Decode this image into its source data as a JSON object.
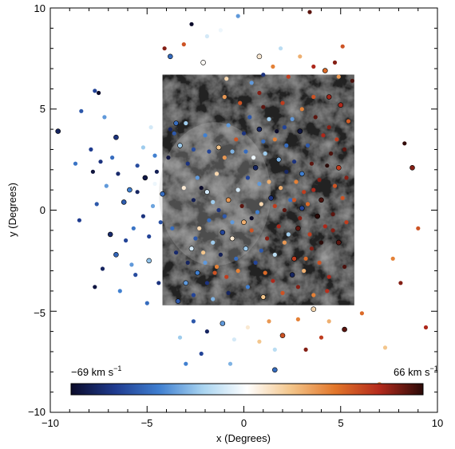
{
  "chart_data": {
    "type": "scatter",
    "title": "",
    "xlabel": "x (Degrees)",
    "ylabel": "y (Degrees)",
    "xlim": [
      -10,
      10
    ],
    "ylim": [
      -10,
      10
    ],
    "xticks": [
      -10,
      -5,
      0,
      5,
      10
    ],
    "yticks": [
      -10,
      -5,
      0,
      5,
      10
    ],
    "tick_labels_x": [
      "−10",
      "−5",
      "0",
      "5",
      "10"
    ],
    "tick_labels_y": [
      "−10",
      "−5",
      "0",
      "5",
      "10"
    ],
    "grid": false,
    "background_image": {
      "description": "grayscale nebular emission map",
      "x_range": [
        -4.2,
        5.7
      ],
      "y_range": [
        -4.7,
        6.7
      ]
    },
    "colorbar": {
      "min_label": "−69 km s",
      "max_label": "66 km s",
      "unit_superscript": "−1",
      "vmin": -69,
      "vmax": 66,
      "stops": [
        "#0b0b2a",
        "#1f3b8f",
        "#3f7fd0",
        "#a9d4f0",
        "#ffffff",
        "#f3c58a",
        "#e2762a",
        "#b42a1c",
        "#2a0a08"
      ]
    },
    "points": [
      [
        -9.6,
        3.9,
        -60
      ],
      [
        -8.4,
        4.9,
        -45
      ],
      [
        -7.7,
        5.9,
        -50
      ],
      [
        -7.5,
        5.8,
        -69
      ],
      [
        -7.2,
        4.6,
        -30
      ],
      [
        -6.6,
        3.6,
        -55
      ],
      [
        -6.8,
        2.6,
        -40
      ],
      [
        -7.9,
        3.0,
        -52
      ],
      [
        -7.1,
        1.2,
        -30
      ],
      [
        -6.5,
        1.8,
        -58
      ],
      [
        -5.9,
        1.0,
        -35
      ],
      [
        -5.5,
        2.2,
        -48
      ],
      [
        -5.2,
        3.1,
        -20
      ],
      [
        -4.8,
        4.1,
        -10
      ],
      [
        -4.5,
        1.9,
        -62
      ],
      [
        -4.2,
        0.8,
        -40
      ],
      [
        -4.7,
        0.2,
        -28
      ],
      [
        -5.2,
        -0.3,
        -55
      ],
      [
        -5.7,
        -0.9,
        -38
      ],
      [
        -6.1,
        -1.5,
        -50
      ],
      [
        -6.6,
        -2.2,
        -42
      ],
      [
        -7.3,
        -2.9,
        -60
      ],
      [
        -7.7,
        -3.8,
        -65
      ],
      [
        -6.4,
        -4.0,
        -35
      ],
      [
        -5.6,
        -3.2,
        -48
      ],
      [
        -4.9,
        -2.5,
        -22
      ],
      [
        -4.4,
        -3.6,
        -55
      ],
      [
        -5.0,
        -4.6,
        -40
      ],
      [
        -7.8,
        1.9,
        -66
      ],
      [
        -7.4,
        2.4,
        -55
      ],
      [
        -6.2,
        0.4,
        -44
      ],
      [
        -5.5,
        0.9,
        -60
      ],
      [
        -4.6,
        2.7,
        -35
      ],
      [
        -4.9,
        -1.3,
        -50
      ],
      [
        -5.8,
        -2.7,
        -30
      ],
      [
        -6.9,
        -1.2,
        -58
      ],
      [
        -7.6,
        0.3,
        -45
      ],
      [
        -8.7,
        2.3,
        -38
      ],
      [
        -8.5,
        -0.5,
        -52
      ],
      [
        -4.6,
        1.3,
        -5
      ],
      [
        -5.1,
        1.6,
        -64
      ],
      [
        -4.3,
        -0.6,
        -47
      ],
      [
        -3.3,
        -6.3,
        -20
      ],
      [
        -2.6,
        -5.5,
        -45
      ],
      [
        -1.9,
        -6.0,
        -60
      ],
      [
        -1.1,
        -5.6,
        -30
      ],
      [
        -0.5,
        -6.4,
        -10
      ],
      [
        0.2,
        -5.8,
        5
      ],
      [
        0.8,
        -6.5,
        15
      ],
      [
        1.3,
        -5.5,
        25
      ],
      [
        2.0,
        -6.2,
        40
      ],
      [
        2.8,
        -5.4,
        30
      ],
      [
        3.2,
        -6.9,
        55
      ],
      [
        4.0,
        -6.3,
        45
      ],
      [
        4.4,
        -5.5,
        20
      ],
      [
        3.6,
        -4.9,
        10
      ],
      [
        1.6,
        -6.9,
        -15
      ],
      [
        -0.7,
        -7.6,
        -25
      ],
      [
        -2.2,
        -7.1,
        -50
      ],
      [
        -3.0,
        -7.6,
        -35
      ],
      [
        5.2,
        -5.9,
        60
      ],
      [
        6.1,
        -5.1,
        35
      ],
      [
        7.3,
        -6.8,
        15
      ],
      [
        9.4,
        -5.8,
        50
      ],
      [
        9.0,
        -0.9,
        40
      ],
      [
        8.7,
        2.1,
        55
      ],
      [
        8.3,
        3.3,
        65
      ],
      [
        7.7,
        -2.4,
        30
      ],
      [
        8.1,
        -3.6,
        55
      ],
      [
        7.0,
        -8.6,
        20
      ],
      [
        1.6,
        -7.9,
        -40
      ],
      [
        -3.1,
        8.2,
        40
      ],
      [
        -2.7,
        9.2,
        -69
      ],
      [
        -1.9,
        8.6,
        -10
      ],
      [
        -0.3,
        9.6,
        -30
      ],
      [
        0.8,
        7.6,
        5
      ],
      [
        1.5,
        7.1,
        30
      ],
      [
        2.3,
        6.6,
        45
      ],
      [
        2.9,
        7.6,
        20
      ],
      [
        3.6,
        7.1,
        50
      ],
      [
        4.2,
        6.9,
        35
      ],
      [
        4.7,
        7.3,
        55
      ],
      [
        5.1,
        8.1,
        40
      ],
      [
        4.9,
        6.6,
        25
      ],
      [
        3.4,
        9.8,
        60
      ],
      [
        -3.8,
        7.6,
        -40
      ],
      [
        -4.1,
        8.0,
        55
      ],
      [
        1.0,
        6.7,
        -55
      ],
      [
        0.4,
        6.3,
        -30
      ],
      [
        -0.9,
        6.5,
        10
      ],
      [
        -2.1,
        7.3,
        0
      ],
      [
        1.9,
        8.0,
        -15
      ],
      [
        5.6,
        6.4,
        62
      ],
      [
        -1.2,
        8.9,
        -5
      ],
      [
        -3.6,
        3.8,
        -45
      ],
      [
        -3.3,
        3.2,
        -20
      ],
      [
        -2.9,
        2.3,
        -55
      ],
      [
        -2.4,
        1.6,
        -30
      ],
      [
        -3.1,
        1.1,
        5
      ],
      [
        -2.6,
        0.5,
        -62
      ],
      [
        -1.9,
        0.9,
        -10
      ],
      [
        -1.4,
        1.8,
        10
      ],
      [
        -1.0,
        2.6,
        25
      ],
      [
        -0.4,
        3.5,
        40
      ],
      [
        0.1,
        2.9,
        -40
      ],
      [
        0.6,
        2.1,
        -60
      ],
      [
        1.1,
        2.8,
        -20
      ],
      [
        1.6,
        3.5,
        30
      ],
      [
        2.1,
        4.1,
        -50
      ],
      [
        2.5,
        4.5,
        -30
      ],
      [
        2.9,
        3.9,
        -65
      ],
      [
        3.3,
        3.2,
        -45
      ],
      [
        3.7,
        4.6,
        60
      ],
      [
        4.1,
        3.7,
        50
      ],
      [
        4.5,
        2.8,
        62
      ],
      [
        4.9,
        2.1,
        45
      ],
      [
        5.3,
        1.6,
        55
      ],
      [
        5.1,
        0.6,
        40
      ],
      [
        4.6,
        -0.2,
        60
      ],
      [
        4.2,
        -0.8,
        50
      ],
      [
        3.8,
        -0.3,
        66
      ],
      [
        3.3,
        0.3,
        35
      ],
      [
        2.9,
        -0.4,
        55
      ],
      [
        2.4,
        0.5,
        -40
      ],
      [
        1.9,
        1.1,
        20
      ],
      [
        1.4,
        0.6,
        -55
      ],
      [
        0.9,
        0.3,
        10
      ],
      [
        0.4,
        -0.4,
        -69
      ],
      [
        -0.1,
        0.2,
        60
      ],
      [
        -0.6,
        -0.6,
        -30
      ],
      [
        -1.1,
        -1.1,
        -50
      ],
      [
        -1.6,
        -1.6,
        -20
      ],
      [
        -2.1,
        -2.1,
        15
      ],
      [
        -2.5,
        -1.4,
        -45
      ],
      [
        -2.9,
        -2.6,
        -60
      ],
      [
        -2.4,
        -3.1,
        -35
      ],
      [
        -1.9,
        -3.6,
        -55
      ],
      [
        -1.4,
        -2.8,
        30
      ],
      [
        -0.9,
        -3.3,
        45
      ],
      [
        -0.4,
        -2.4,
        -40
      ],
      [
        0.1,
        -1.9,
        -20
      ],
      [
        0.6,
        -2.6,
        -50
      ],
      [
        1.1,
        -3.1,
        35
      ],
      [
        1.6,
        -2.2,
        -15
      ],
      [
        2.1,
        -1.6,
        25
      ],
      [
        2.6,
        -2.4,
        45
      ],
      [
        3.1,
        -3.0,
        20
      ],
      [
        3.5,
        -1.9,
        55
      ],
      [
        3.9,
        -2.6,
        40
      ],
      [
        4.4,
        -3.3,
        50
      ],
      [
        4.9,
        -1.6,
        60
      ],
      [
        5.3,
        -0.6,
        45
      ],
      [
        5.2,
        -2.8,
        62
      ],
      [
        -3.7,
        -0.9,
        -40
      ],
      [
        -3.5,
        -2.1,
        -58
      ],
      [
        -3.0,
        -3.6,
        -30
      ],
      [
        -2.6,
        -4.2,
        -50
      ],
      [
        -1.6,
        -4.4,
        -25
      ],
      [
        -0.8,
        -4.1,
        -60
      ],
      [
        0.2,
        -3.8,
        -35
      ],
      [
        1.0,
        -4.3,
        15
      ],
      [
        2.0,
        -4.1,
        40
      ],
      [
        2.8,
        -3.8,
        55
      ],
      [
        3.6,
        -4.2,
        30
      ],
      [
        4.3,
        -4.0,
        48
      ],
      [
        -3.4,
        -4.5,
        -45
      ],
      [
        -3.9,
        2.6,
        -65
      ],
      [
        -1.8,
        2.9,
        -50
      ],
      [
        -0.8,
        4.2,
        -30
      ],
      [
        0.3,
        4.6,
        -45
      ],
      [
        0.8,
        4.0,
        -60
      ],
      [
        1.3,
        4.5,
        -20
      ],
      [
        1.7,
        3.9,
        -69
      ],
      [
        2.2,
        3.2,
        -40
      ],
      [
        2.6,
        2.4,
        -55
      ],
      [
        3.0,
        1.8,
        -35
      ],
      [
        3.5,
        2.3,
        60
      ],
      [
        3.9,
        1.5,
        55
      ],
      [
        4.3,
        2.2,
        66
      ],
      [
        4.7,
        1.2,
        40
      ],
      [
        4.0,
        0.5,
        62
      ],
      [
        3.6,
        1.0,
        50
      ],
      [
        3.1,
        0.9,
        45
      ],
      [
        2.7,
        1.4,
        30
      ],
      [
        2.2,
        1.9,
        -60
      ],
      [
        1.8,
        2.5,
        -25
      ],
      [
        1.3,
        1.4,
        20
      ],
      [
        0.8,
        1.3,
        -30
      ],
      [
        0.2,
        1.6,
        -50
      ],
      [
        -0.3,
        1.0,
        -10
      ],
      [
        -0.8,
        0.5,
        25
      ],
      [
        -1.3,
        0.0,
        -55
      ],
      [
        -1.8,
        -0.5,
        -40
      ],
      [
        -2.3,
        -0.9,
        10
      ],
      [
        -1.2,
        -2.2,
        -62
      ],
      [
        -0.6,
        -1.4,
        5
      ],
      [
        0.4,
        -1.0,
        40
      ],
      [
        1.2,
        -1.4,
        55
      ],
      [
        1.8,
        -0.8,
        50
      ],
      [
        2.3,
        -1.2,
        -20
      ],
      [
        2.8,
        -0.9,
        60
      ],
      [
        3.4,
        -1.2,
        45
      ],
      [
        4.0,
        -1.6,
        66
      ],
      [
        4.6,
        -1.0,
        55
      ],
      [
        -2.0,
        -2.6,
        -30
      ],
      [
        -2.7,
        -1.9,
        -10
      ],
      [
        -1.5,
        -3.1,
        40
      ],
      [
        -0.3,
        -3.0,
        30
      ],
      [
        0.9,
        -2.0,
        -45
      ],
      [
        1.5,
        -3.5,
        50
      ],
      [
        2.5,
        -3.2,
        -60
      ],
      [
        3.2,
        -2.4,
        35
      ],
      [
        -2.2,
        1.1,
        -69
      ],
      [
        -1.6,
        0.4,
        -20
      ],
      [
        -1.0,
        -0.3,
        -45
      ],
      [
        0.0,
        -0.6,
        20
      ],
      [
        0.7,
        -0.1,
        -35
      ],
      [
        1.6,
        0.2,
        45
      ],
      [
        2.1,
        0.0,
        60
      ],
      [
        2.6,
        0.5,
        40
      ],
      [
        3.0,
        0.1,
        -50
      ],
      [
        0.5,
        2.6,
        -5
      ],
      [
        1.0,
        3.4,
        -40
      ],
      [
        0.0,
        3.8,
        -55
      ],
      [
        -0.6,
        2.9,
        -25
      ],
      [
        -1.3,
        3.1,
        15
      ],
      [
        -2.0,
        3.7,
        -35
      ],
      [
        -2.6,
        3.0,
        -48
      ],
      [
        -3.0,
        4.3,
        -20
      ],
      [
        -3.8,
        4.0,
        -60
      ],
      [
        -3.5,
        4.3,
        -40
      ],
      [
        4.4,
        4.1,
        55
      ],
      [
        4.8,
        3.5,
        45
      ],
      [
        5.2,
        3.0,
        60
      ],
      [
        5.4,
        4.4,
        38
      ],
      [
        5.0,
        5.2,
        50
      ],
      [
        3.0,
        5.0,
        30
      ],
      [
        2.0,
        5.3,
        45
      ],
      [
        1.0,
        5.1,
        60
      ],
      [
        3.6,
        5.6,
        40
      ],
      [
        4.4,
        5.6,
        52
      ],
      [
        -1.0,
        5.6,
        25
      ],
      [
        -0.2,
        5.3,
        40
      ],
      [
        0.8,
        5.8,
        55
      ]
    ]
  }
}
